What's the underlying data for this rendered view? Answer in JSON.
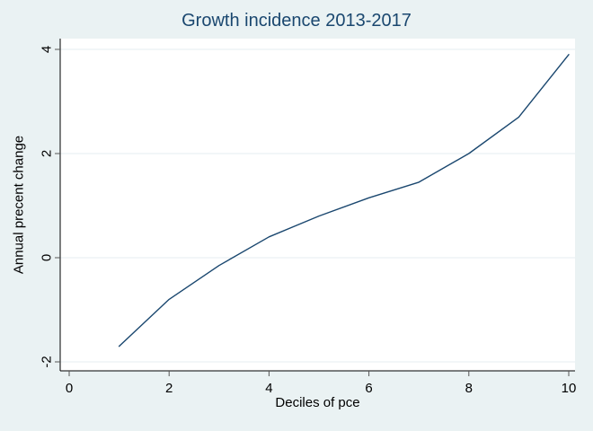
{
  "figure": {
    "background_color": "#eaf2f3",
    "plot_background_color": "#ffffff",
    "title_color": "#1a476f",
    "line_color": "#1a476f",
    "grid_color": "#e4eef0",
    "axis_color": "#000000",
    "tick_color": "#555555"
  },
  "chart_data": {
    "type": "line",
    "title": "Growth incidence 2013-2017",
    "xlabel": "Deciles of pce",
    "ylabel": "Annual precent change",
    "x": [
      1,
      2,
      3,
      4,
      5,
      6,
      7,
      8,
      9,
      10
    ],
    "values": [
      -1.7,
      -0.8,
      -0.15,
      0.4,
      0.8,
      1.15,
      1.45,
      2.0,
      2.7,
      3.9
    ],
    "xticks": [
      0,
      2,
      4,
      6,
      8,
      10
    ],
    "yticks": [
      -2,
      0,
      2,
      4
    ],
    "xlim": [
      0,
      10
    ],
    "ylim": [
      -2,
      4
    ],
    "grid": true,
    "legend": "none"
  }
}
